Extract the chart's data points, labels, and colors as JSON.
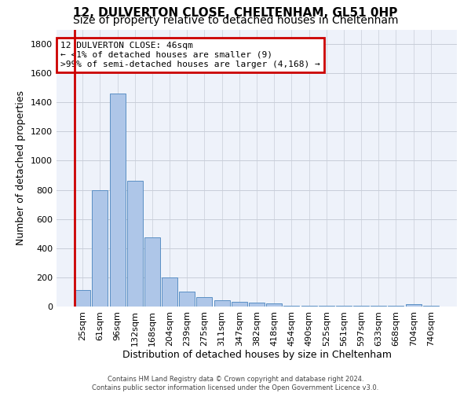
{
  "title": "12, DULVERTON CLOSE, CHELTENHAM, GL51 0HP",
  "subtitle": "Size of property relative to detached houses in Cheltenham",
  "xlabel": "Distribution of detached houses by size in Cheltenham",
  "ylabel": "Number of detached properties",
  "footer_line1": "Contains HM Land Registry data © Crown copyright and database right 2024.",
  "footer_line2": "Contains public sector information licensed under the Open Government Licence v3.0.",
  "annotation_line1": "12 DULVERTON CLOSE: 46sqm",
  "annotation_line2": "← <1% of detached houses are smaller (9)",
  "annotation_line3": ">99% of semi-detached houses are larger (4,168) →",
  "bar_labels": [
    "25sqm",
    "61sqm",
    "96sqm",
    "132sqm",
    "168sqm",
    "204sqm",
    "239sqm",
    "275sqm",
    "311sqm",
    "347sqm",
    "382sqm",
    "418sqm",
    "454sqm",
    "490sqm",
    "525sqm",
    "561sqm",
    "597sqm",
    "633sqm",
    "668sqm",
    "704sqm",
    "740sqm"
  ],
  "bar_values": [
    115,
    800,
    1460,
    860,
    475,
    200,
    100,
    65,
    45,
    35,
    28,
    20,
    5,
    5,
    5,
    5,
    5,
    5,
    5,
    15,
    5
  ],
  "bar_color": "#aec6e8",
  "bar_edge_color": "#5a8fc4",
  "vline_color": "#cc0000",
  "annotation_box_color": "#cc0000",
  "ylim": [
    0,
    1900
  ],
  "yticks": [
    0,
    200,
    400,
    600,
    800,
    1000,
    1200,
    1400,
    1600,
    1800
  ],
  "background_color": "#eef2fa",
  "grid_color": "#c8cdd8",
  "title_fontsize": 11,
  "subtitle_fontsize": 10,
  "axis_label_fontsize": 9,
  "tick_fontsize": 8,
  "annotation_fontsize": 8
}
